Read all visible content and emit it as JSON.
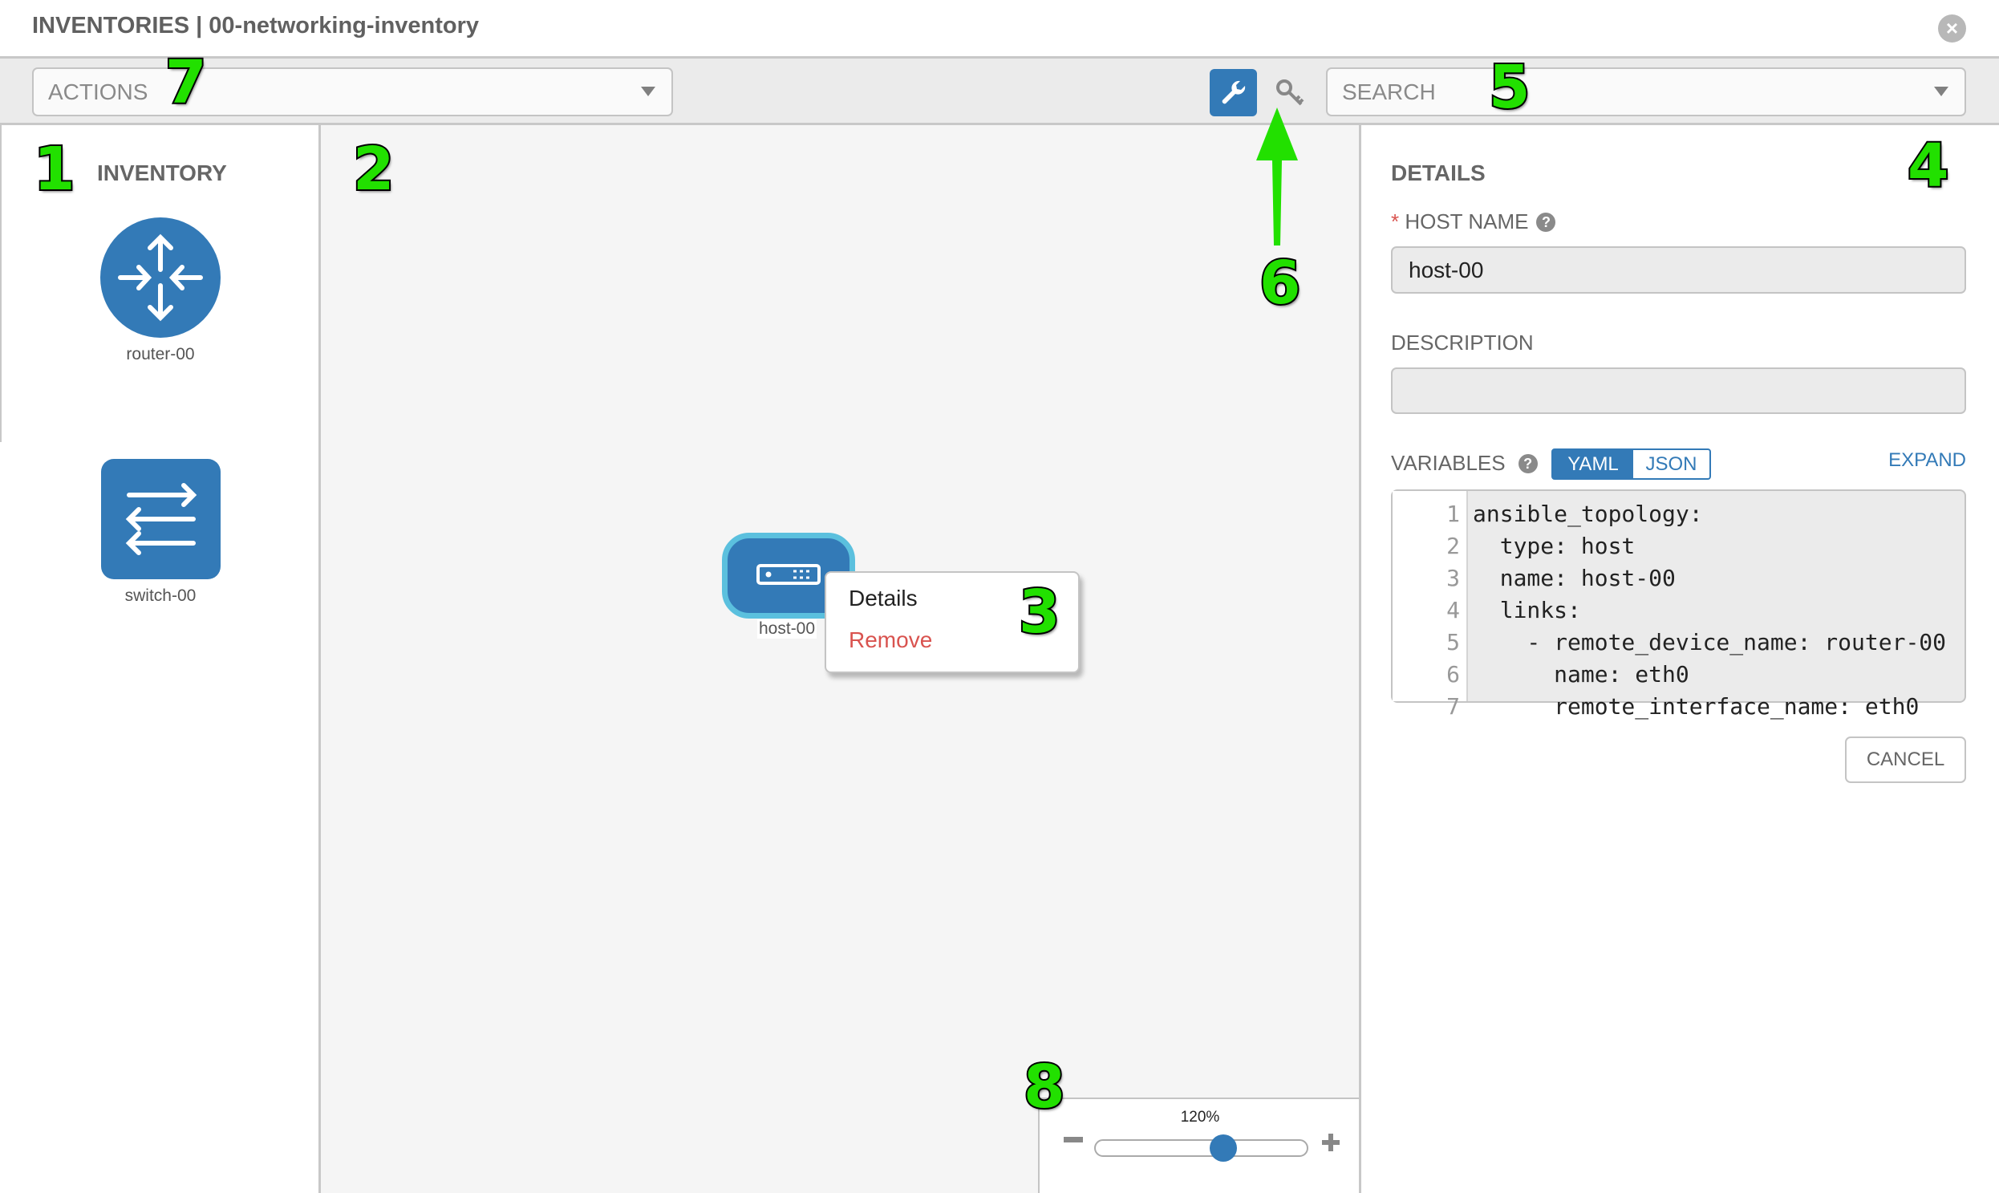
{
  "header": {
    "title": "INVENTORIES | 00-networking-inventory",
    "close_icon": "close-circle-icon"
  },
  "toolbar": {
    "actions_placeholder": "ACTIONS",
    "search_placeholder": "SEARCH",
    "tools": [
      {
        "icon": "wrench-icon",
        "active": true
      },
      {
        "icon": "key-icon",
        "active": false
      }
    ]
  },
  "inventory": {
    "title": "INVENTORY",
    "items": [
      {
        "label": "router-00",
        "icon": "router-icon"
      },
      {
        "label": "switch-00",
        "icon": "switch-icon"
      }
    ]
  },
  "canvas": {
    "node": {
      "label": "host-00",
      "icon": "host-icon"
    },
    "context_menu": {
      "items": [
        {
          "label": "Details"
        },
        {
          "label": "Remove"
        }
      ]
    },
    "zoom": {
      "label": "120%",
      "value_percent": 120,
      "slider_position": 0.6
    }
  },
  "details": {
    "title": "DETAILS",
    "host_name_label": "HOST NAME",
    "host_name_value": "host-00",
    "description_label": "DESCRIPTION",
    "description_value": "",
    "variables_label": "VARIABLES",
    "format_yaml": "YAML",
    "format_json": "JSON",
    "expand": "EXPAND",
    "code_lines": [
      "ansible_topology:",
      "  type: host",
      "  name: host-00",
      "  links:",
      "    - remote_device_name: router-00",
      "      name: eth0",
      "      remote_interface_name: eth0"
    ],
    "line_numbers": [
      "1",
      "2",
      "3",
      "4",
      "5",
      "6",
      "7"
    ],
    "cancel": "CANCEL"
  },
  "annotations": [
    "1",
    "2",
    "3",
    "4",
    "5",
    "6",
    "7",
    "8"
  ],
  "colors": {
    "primary": "#337ab7",
    "danger": "#d9534f",
    "annotation": "#22e000",
    "node_highlight": "#5bc0de"
  }
}
